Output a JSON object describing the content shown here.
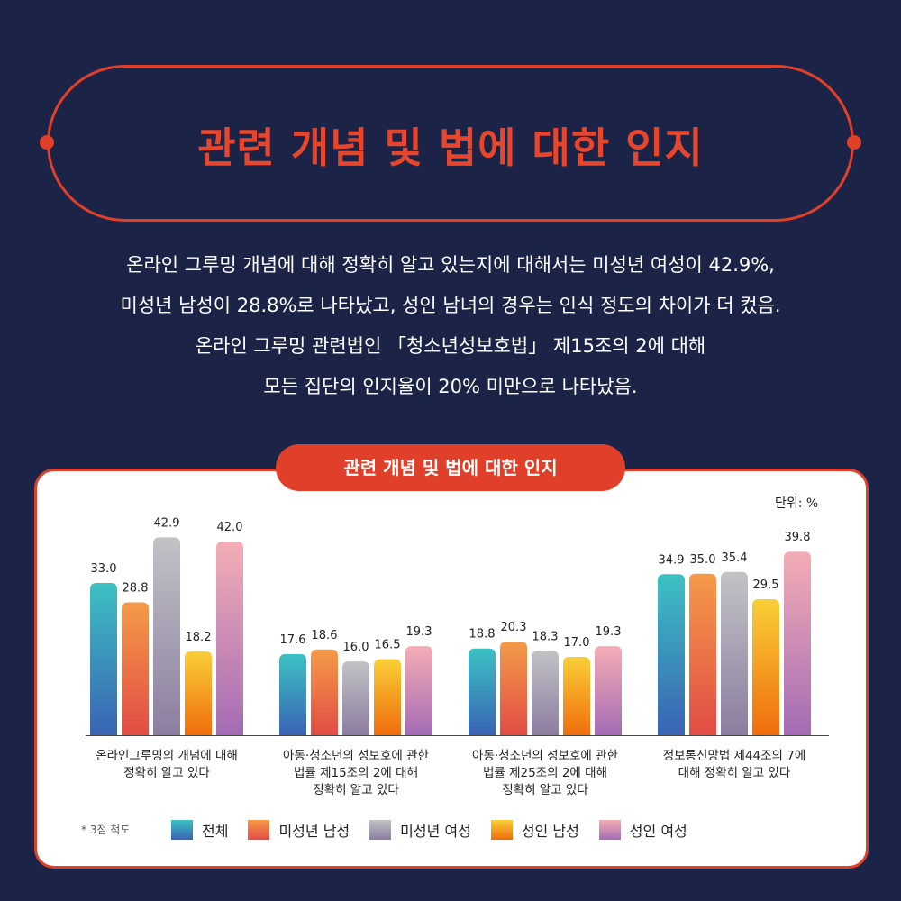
{
  "header": {
    "title": "관련 개념 및 법에 대한 인지",
    "description": [
      "온라인 그루밍 개념에 대해 정확히 알고 있는지에 대해서는 미성년 여성이 42.9%,",
      "미성년 남성이 28.8%로 나타났고, 성인 남녀의 경우는 인식 정도의 차이가 더 컸음.",
      "온라인 그루밍 관련법인 「청소년성보호법」 제15조의 2에 대해",
      "모든 집단의 인지율이 20% 미만으로 나타났음."
    ]
  },
  "chart_panel": {
    "title": "관련 개념 및 법에 대한 인지",
    "unit": "단위: %",
    "footnote": "* 3점 척도"
  },
  "chart_data": {
    "type": "bar",
    "title": "관련 개념 및 법에 대한 인지",
    "ylabel": "",
    "xlabel": "",
    "categories": [
      [
        "온라인그루밍의 개념에 대해",
        "정확히 알고 있다"
      ],
      [
        "아동·청소년의 성보호에 관한",
        "법률 제15조의 2에 대해",
        "정확히 알고 있다"
      ],
      [
        "아동·청소년의 성보호에 관한",
        "법률 제25조의 2에 대해",
        "정확히 알고 있다"
      ],
      [
        "정보통신망법 제44조의 7에",
        "대해 정확히 알고 있다"
      ]
    ],
    "series": [
      {
        "name": "전체",
        "values": [
          33.0,
          17.6,
          18.8,
          34.9
        ],
        "labels": [
          "33.0",
          "17.6",
          "18.8",
          "34.9"
        ],
        "colors": [
          "#3cc1c3",
          "#3a63b4"
        ]
      },
      {
        "name": "미성년 남성",
        "values": [
          28.8,
          18.6,
          20.3,
          35.0
        ],
        "labels": [
          "28.8",
          "18.6",
          "20.3",
          "35.0"
        ],
        "colors": [
          "#f49a48",
          "#e24c45"
        ]
      },
      {
        "name": "미성년 여성",
        "values": [
          42.9,
          16.0,
          18.3,
          35.4
        ],
        "labels": [
          "42.9",
          "16.0",
          "18.3",
          "35.4"
        ],
        "colors": [
          "#c2c2c6",
          "#8c7da0"
        ]
      },
      {
        "name": "성인 남성",
        "values": [
          18.2,
          16.5,
          17.0,
          29.5
        ],
        "labels": [
          "18.2",
          "16.5",
          "17.0",
          "29.5"
        ],
        "colors": [
          "#f9cf38",
          "#f06c0c"
        ]
      },
      {
        "name": "성인 여성",
        "values": [
          42.0,
          19.3,
          19.3,
          39.8
        ],
        "labels": [
          "42.0",
          "19.3",
          "19.3",
          "39.8"
        ],
        "colors": [
          "#f4adb5",
          "#a46bb5"
        ]
      }
    ],
    "legend": "bottom",
    "grid": false
  }
}
